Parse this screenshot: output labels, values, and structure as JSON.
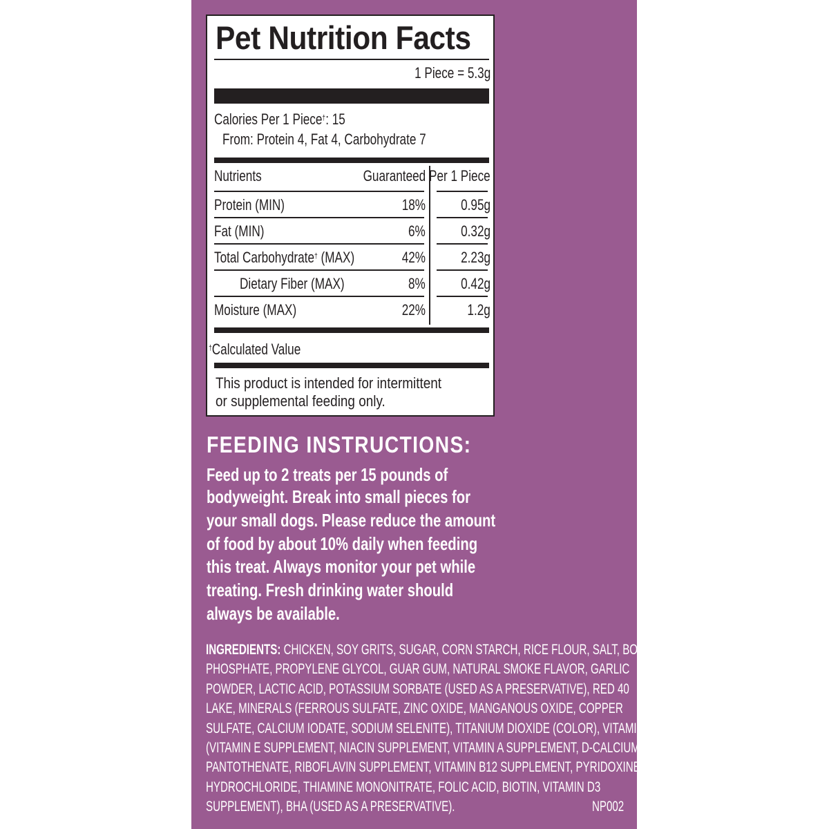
{
  "colors": {
    "background": "#9a5b91",
    "label": "#ffffff",
    "ink": "#231f20"
  },
  "nutrition": {
    "title": "Pet Nutrition Facts",
    "serving": "1 Piece = 5.3g",
    "calories": "Calories Per 1 Piece",
    "calories_mark": "†",
    "calories_value": ": 15",
    "calories_from": "From: Protein 4, Fat 4, Carbohydrate 7",
    "headers": {
      "nutrients": "Nutrients",
      "guaranteed": "Guaranteed",
      "per_piece": "Per 1 Piece"
    },
    "rows": [
      {
        "name": "Protein (MIN)",
        "mark": "",
        "guaranteed": "18%",
        "per_piece": "0.95g"
      },
      {
        "name": "Fat (MIN)",
        "mark": "",
        "guaranteed": "6%",
        "per_piece": "0.32g"
      },
      {
        "name": "Total Carbohydrate",
        "mark": "†",
        "suffix": " (MAX)",
        "guaranteed": "42%",
        "per_piece": "2.23g"
      },
      {
        "name": "Dietary Fiber (MAX)",
        "mark": "",
        "guaranteed": "8%",
        "per_piece": "0.42g"
      },
      {
        "name": "Moisture (MAX)",
        "mark": "",
        "guaranteed": "22%",
        "per_piece": "1.2g"
      }
    ],
    "footnote_mark": "†",
    "footnote": "Calculated Value",
    "disclaimer": [
      "This product is intended for intermittent",
      "or supplemental feeding only."
    ]
  },
  "feeding": {
    "title": "FEEDING INSTRUCTIONS:",
    "lines": [
      "Feed up to 2 treats per 15 pounds of",
      "bodyweight. Break into small pieces for",
      "your small dogs. Please reduce the amount",
      "of food by about 10% daily when feeding",
      "this treat. Always monitor your pet while",
      "treating. Fresh drinking water should",
      "always be available."
    ]
  },
  "ingredients": {
    "label": "INGREDIENTS:",
    "lines": [
      " CHICKEN, SOY GRITS, SUGAR, CORN STARCH, RICE FLOUR, SALT, BONE",
      "PHOSPHATE, PROPYLENE GLYCOL, GUAR GUM, NATURAL SMOKE FLAVOR, GARLIC",
      "POWDER, LACTIC ACID, POTASSIUM SORBATE (USED AS A PRESERVATIVE), RED 40",
      "LAKE, MINERALS (FERROUS SULFATE, ZINC OXIDE, MANGANOUS OXIDE, COPPER",
      "SULFATE, CALCIUM IODATE, SODIUM SELENITE), TITANIUM DIOXIDE (COLOR), VITAMINS",
      "(VITAMIN E SUPPLEMENT, NIACIN SUPPLEMENT, VITAMIN A SUPPLEMENT, D-CALCIUM",
      "PANTOTHENATE, RIBOFLAVIN SUPPLEMENT, VITAMIN B12 SUPPLEMENT, PYRIDOXINE",
      "HYDROCHLORIDE, THIAMINE MONONITRATE, FOLIC ACID, BIOTIN, VITAMIN D3",
      "SUPPLEMENT), BHA (USED AS A PRESERVATIVE)."
    ],
    "code": "NP002"
  }
}
